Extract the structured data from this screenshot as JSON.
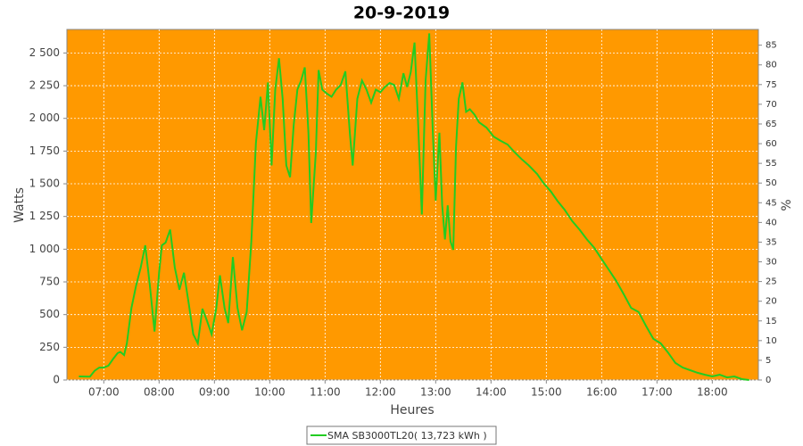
{
  "chart_data": {
    "type": "line",
    "title": "20-9-2019",
    "x_label": "Heures",
    "y_label": "Watts",
    "y2_label": "%",
    "xlim": [
      "06:20",
      "18:50"
    ],
    "xticks": [
      "07:00",
      "08:00",
      "09:00",
      "10:00",
      "11:00",
      "12:00",
      "13:00",
      "14:00",
      "15:00",
      "16:00",
      "17:00",
      "18:00"
    ],
    "ylim": [
      0,
      2680
    ],
    "yticks": [
      0,
      250,
      500,
      750,
      {
        "value": 1000,
        "label": "1 000"
      },
      {
        "value": 1250,
        "label": "1 250"
      },
      {
        "value": 1500,
        "label": "1 500"
      },
      {
        "value": 1750,
        "label": "1 750"
      },
      {
        "value": 2000,
        "label": "2 000"
      },
      {
        "value": 2250,
        "label": "2 250"
      },
      {
        "value": 2500,
        "label": "2 500"
      }
    ],
    "y2lim": [
      0,
      89
    ],
    "y2ticks": [
      0,
      5,
      10,
      15,
      20,
      25,
      30,
      35,
      40,
      45,
      50,
      55,
      60,
      65,
      70,
      75,
      80,
      85
    ],
    "grid": true,
    "background": "#ff9900",
    "legend": "bottom",
    "x": [
      "06:33",
      "06:45",
      "06:50",
      "06:55",
      "07:00",
      "07:05",
      "07:10",
      "07:15",
      "07:18",
      "07:22",
      "07:25",
      "07:30",
      "07:35",
      "07:40",
      "07:45",
      "07:50",
      "07:55",
      "08:00",
      "08:03",
      "08:07",
      "08:12",
      "08:17",
      "08:22",
      "08:27",
      "08:32",
      "08:37",
      "08:42",
      "08:47",
      "08:52",
      "08:57",
      "09:02",
      "09:06",
      "09:11",
      "09:15",
      "09:20",
      "09:25",
      "09:30",
      "09:35",
      "09:40",
      "09:45",
      "09:50",
      "09:54",
      "09:58",
      "10:02",
      "10:06",
      "10:10",
      "10:14",
      "10:18",
      "10:22",
      "10:26",
      "10:30",
      "10:34",
      "10:38",
      "10:42",
      "10:45",
      "10:50",
      "10:53",
      "10:57",
      "11:02",
      "11:07",
      "11:12",
      "11:17",
      "11:22",
      "11:27",
      "11:30",
      "11:35",
      "11:40",
      "11:45",
      "11:50",
      "11:55",
      "12:00",
      "12:05",
      "12:10",
      "12:15",
      "12:20",
      "12:25",
      "12:29",
      "12:33",
      "12:37",
      "12:41",
      "12:45",
      "12:49",
      "12:53",
      "12:57",
      "13:00",
      "13:04",
      "13:07",
      "13:10",
      "13:13",
      "13:16",
      "13:19",
      "13:22",
      "13:25",
      "13:29",
      "13:33",
      "13:37",
      "13:42",
      "13:47",
      "13:55",
      "14:03",
      "14:10",
      "14:18",
      "14:25",
      "14:33",
      "14:41",
      "14:50",
      "14:57",
      "15:05",
      "15:12",
      "15:20",
      "15:28",
      "15:36",
      "15:44",
      "15:52",
      "16:00",
      "16:08",
      "16:16",
      "16:24",
      "16:32",
      "16:40",
      "16:48",
      "16:56",
      "17:04",
      "17:12",
      "17:20",
      "17:28",
      "17:36",
      "17:44",
      "17:52",
      "18:00",
      "18:08",
      "18:16",
      "18:24",
      "18:32",
      "18:40"
    ],
    "series": [
      {
        "name": "SMA SB3000TL20( 13,723 kWh )",
        "color": "#22cc22",
        "values": [
          27,
          25,
          70,
          95,
          95,
          110,
          160,
          205,
          215,
          190,
          280,
          550,
          720,
          860,
          1030,
          720,
          370,
          820,
          1030,
          1050,
          1150,
          860,
          690,
          820,
          590,
          350,
          280,
          545,
          450,
          350,
          550,
          800,
          550,
          435,
          940,
          550,
          380,
          520,
          1060,
          1810,
          2165,
          1910,
          2275,
          1640,
          2220,
          2460,
          2150,
          1640,
          1550,
          1950,
          2220,
          2290,
          2390,
          1890,
          1200,
          1740,
          2370,
          2220,
          2190,
          2165,
          2220,
          2255,
          2360,
          1880,
          1640,
          2150,
          2290,
          2220,
          2120,
          2220,
          2200,
          2240,
          2270,
          2255,
          2150,
          2345,
          2240,
          2355,
          2580,
          1950,
          1265,
          2290,
          2650,
          1880,
          1370,
          1890,
          1335,
          1075,
          1335,
          1060,
          995,
          1780,
          2150,
          2275,
          2050,
          2070,
          2030,
          1970,
          1930,
          1860,
          1830,
          1800,
          1745,
          1690,
          1640,
          1575,
          1505,
          1440,
          1370,
          1300,
          1215,
          1150,
          1075,
          1010,
          925,
          840,
          755,
          655,
          550,
          520,
          415,
          315,
          280,
          210,
          130,
          95,
          75,
          55,
          40,
          27,
          40,
          20,
          27,
          7,
          0
        ]
      }
    ]
  }
}
